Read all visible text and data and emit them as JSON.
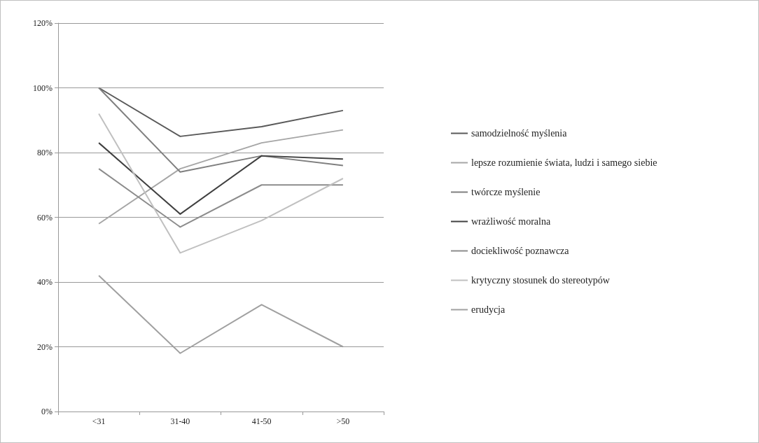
{
  "chart_data": {
    "type": "line",
    "categories": [
      "<31",
      "31-40",
      "41-50",
      ">50"
    ],
    "series": [
      {
        "name": "samodzielność myślenia",
        "color": "#595959",
        "values": [
          100,
          85,
          88,
          93
        ]
      },
      {
        "name": "lepsze rozumienie świata, ludzi i samego siebie",
        "color": "#a6a6a6",
        "values": [
          58,
          75,
          83,
          87
        ]
      },
      {
        "name": "twórcze myślenie",
        "color": "#7f7f7f",
        "values": [
          100,
          74,
          79,
          76
        ]
      },
      {
        "name": "wrażliwość moralna",
        "color": "#404040",
        "values": [
          83,
          61,
          79,
          78
        ]
      },
      {
        "name": "dociekliwość poznawcza",
        "color": "#8c8c8c",
        "values": [
          75,
          57,
          70,
          70
        ]
      },
      {
        "name": "krytyczny stosunek do stereotypów",
        "color": "#c0c0c0",
        "values": [
          92,
          49,
          59,
          72
        ]
      },
      {
        "name": "erudycja",
        "color": "#a0a0a0",
        "values": [
          42,
          18,
          33,
          20
        ]
      }
    ],
    "ylim": [
      0,
      120
    ],
    "yticks": [
      {
        "value": 0,
        "label": "0%"
      },
      {
        "value": 20,
        "label": "20%"
      },
      {
        "value": 40,
        "label": "40%"
      },
      {
        "value": 60,
        "label": "60%"
      },
      {
        "value": 80,
        "label": "80%"
      },
      {
        "value": 100,
        "label": "100%"
      },
      {
        "value": 120,
        "label": "120%"
      }
    ],
    "grid": "y",
    "legend": "right",
    "marker": "none",
    "line_style": "solid"
  }
}
